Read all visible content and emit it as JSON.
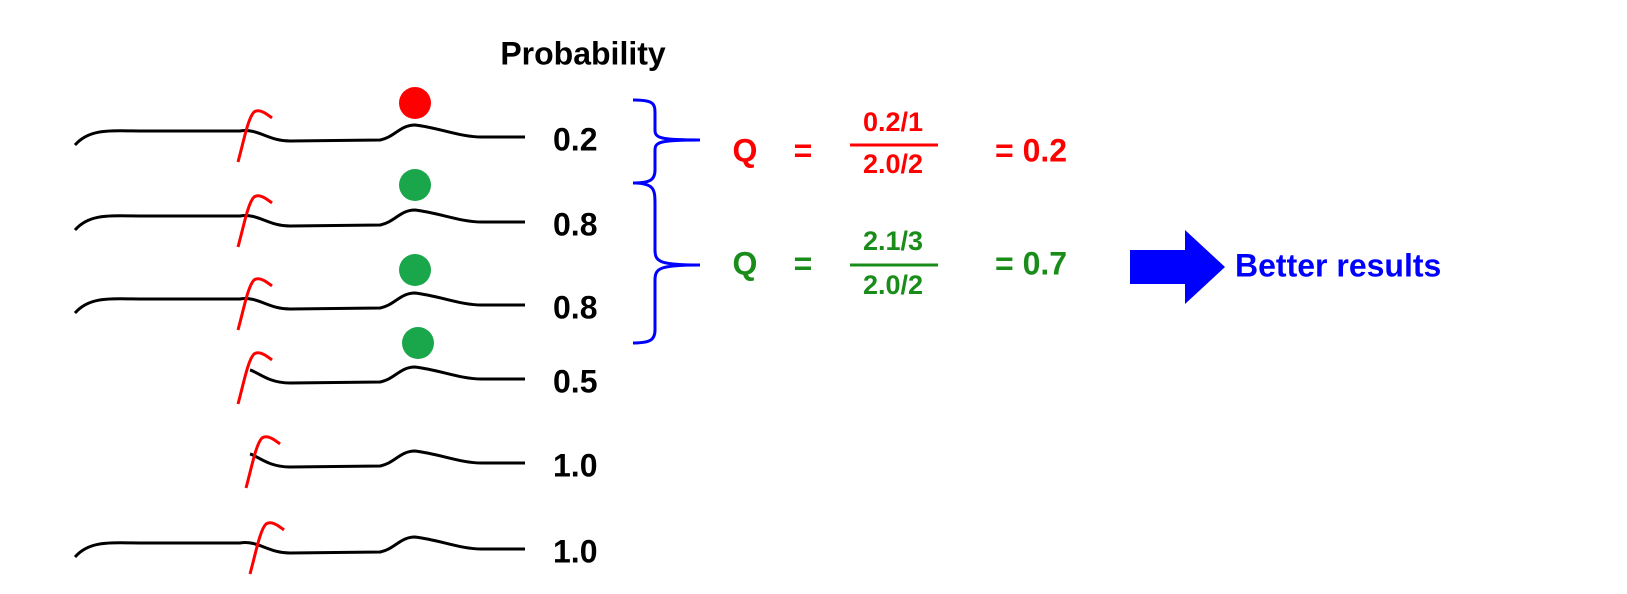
{
  "title": "Probability",
  "rows": [
    {
      "probability": "0.2"
    },
    {
      "probability": "0.8"
    },
    {
      "probability": "0.8"
    },
    {
      "probability": "0.5"
    },
    {
      "probability": "1.0"
    },
    {
      "probability": "1.0"
    }
  ],
  "equations": [
    {
      "symbol": "Q",
      "equals": "=",
      "numerator": "0.2/1",
      "denominator": "2.0/2",
      "result": "= 0.2"
    },
    {
      "symbol": "Q",
      "equals": "=",
      "numerator": "2.1/3",
      "denominator": "2.0/2",
      "result": "= 0.7"
    }
  ],
  "conclusion": "Better results"
}
